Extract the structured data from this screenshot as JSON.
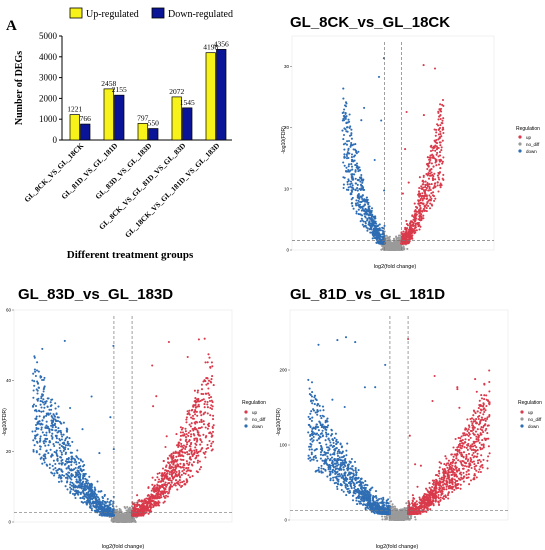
{
  "figure": {
    "panel_letter": "A",
    "colors": {
      "up_bar": "#f7f21a",
      "down_bar": "#0a1496",
      "volcano_up": "#d93a4b",
      "volcano_down": "#2e6db3",
      "volcano_nodiff": "#9a9a9a"
    }
  },
  "chart_data": [
    {
      "type": "bar",
      "title": "",
      "xlabel": "Different treatment groups",
      "ylabel": "Number of DEGs",
      "ylim": [
        0,
        5000
      ],
      "yticks": [
        "0",
        "1000",
        "2000",
        "3000",
        "4000",
        "5000"
      ],
      "legend_position": "top",
      "categories": [
        "GL_8CK_VS_GL_18CK",
        "GL_81D_VS_GL_181D",
        "GL_83D_VS_GL_183D",
        "GL_8CK_VS_GL_81D_VS_GL_83D",
        "GL_18CK_VS_GL_181D_VS_GL_183D"
      ],
      "series": [
        {
          "name": "Up-regulated",
          "values": [
            1221,
            2458,
            797,
            2072,
            4198
          ]
        },
        {
          "name": "Down-regulated",
          "values": [
            766,
            2155,
            550,
            1545,
            4356
          ]
        }
      ],
      "data_labels": {
        "up": [
          "1221",
          "2458",
          "797",
          "2072",
          "4198"
        ],
        "down": [
          "766",
          "2155",
          "550",
          "1545",
          "4356"
        ]
      }
    },
    {
      "type": "scatter",
      "title": "GL_8CK_vs_GL_18CK",
      "xlabel": "log2(fold change)",
      "ylabel": "-log10(FDR)",
      "ylim": [
        0,
        35
      ],
      "xlim": [
        -12,
        12
      ],
      "yticks": [
        "0",
        "10",
        "20",
        "30"
      ],
      "legend_title": "Regulation",
      "legend_position": "right",
      "series": [
        {
          "name": "up",
          "values": []
        },
        {
          "name": "no_diff",
          "values": []
        },
        {
          "name": "down",
          "values": []
        }
      ]
    },
    {
      "type": "scatter",
      "title": "GL_83D_vs_GL_183D",
      "xlabel": "log2(fold change)",
      "ylabel": "-log10(FDR)",
      "ylim": [
        0,
        60
      ],
      "xlim": [
        -12,
        12
      ],
      "yticks": [
        "0",
        "20",
        "40",
        "60"
      ],
      "legend_title": "Regulation",
      "legend_position": "right",
      "series": [
        {
          "name": "up",
          "values": []
        },
        {
          "name": "no_diff",
          "values": []
        },
        {
          "name": "down",
          "values": []
        }
      ]
    },
    {
      "type": "scatter",
      "title": "GL_81D_vs_GL_181D",
      "xlabel": "log2(fold change)",
      "ylabel": "-log10(FDR)",
      "ylim": [
        0,
        280
      ],
      "xlim": [
        -12,
        12
      ],
      "yticks": [
        "0",
        "100",
        "200"
      ],
      "legend_title": "Regulation",
      "legend_position": "right",
      "series": [
        {
          "name": "up",
          "values": []
        },
        {
          "name": "no_diff",
          "values": []
        },
        {
          "name": "down",
          "values": []
        }
      ]
    }
  ]
}
